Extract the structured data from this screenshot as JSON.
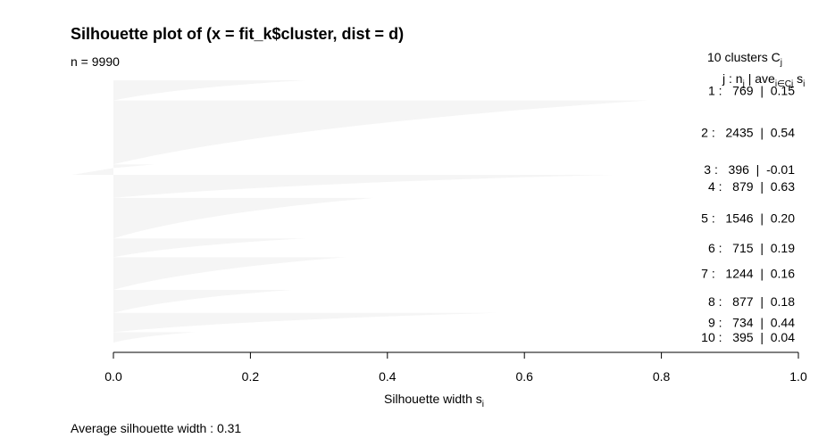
{
  "chart_data": {
    "type": "bar",
    "orientation": "horizontal",
    "title": "Silhouette plot of (x = fit_k$cluster, dist = d)",
    "subtitle": "n = 9990",
    "xlabel": "Silhouette width s",
    "xlabel_subscript": "i",
    "xlim": [
      0.0,
      1.0
    ],
    "xticks": [
      "0.0",
      "0.2",
      "0.4",
      "0.6",
      "0.8",
      "1.0"
    ],
    "legend_header": {
      "line1": "10  clusters  C",
      "line1_sub": "j",
      "line2_j": "j :  n",
      "line2_j_sub": "j",
      "line2_ave": " | ave",
      "line2_ave_sub": "i∈Cj",
      "line2_s": "  s",
      "line2_s_sub": "i"
    },
    "clusters": [
      {
        "label": " 1 :   769  |  0.15",
        "n": 769,
        "ave": 0.15,
        "max": 0.28
      },
      {
        "label": " 2 :   2435  |  0.54",
        "n": 2435,
        "ave": 0.54,
        "max": 0.78
      },
      {
        "label": " 3 :   396  |  -0.01",
        "n": 396,
        "ave": -0.01,
        "max": 0.06
      },
      {
        "label": " 4 :   879  |  0.63",
        "n": 879,
        "ave": 0.63,
        "max": 0.73
      },
      {
        "label": " 5 :   1546  |  0.20",
        "n": 1546,
        "ave": 0.2,
        "max": 0.38
      },
      {
        "label": " 6 :   715  |  0.19",
        "n": 715,
        "ave": 0.19,
        "max": 0.28
      },
      {
        "label": " 7 :   1244  |  0.16",
        "n": 1244,
        "ave": 0.16,
        "max": 0.34
      },
      {
        "label": " 8 :   877  |  0.18",
        "n": 877,
        "ave": 0.18,
        "max": 0.26
      },
      {
        "label": " 9 :   734  |  0.44",
        "n": 734,
        "ave": 0.44,
        "max": 0.56
      },
      {
        "label": "10 :   395  |  0.04",
        "n": 395,
        "ave": 0.04,
        "max": 0.12
      }
    ],
    "footer": "Average silhouette width :  0.31",
    "average_width": 0.31,
    "fill_color": "#f5f5f5"
  }
}
